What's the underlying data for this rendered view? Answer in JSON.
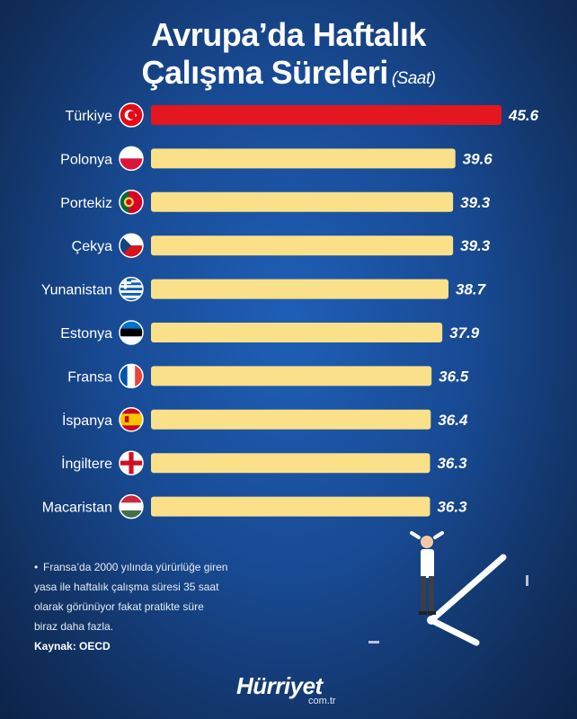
{
  "header": {
    "title_line1": "Avrupa’da Haftalık",
    "title_line2": "Çalışma Süreleri",
    "unit": "(Saat)"
  },
  "colors": {
    "highlight_bar": "#e4161f",
    "bar": "#fbe08a",
    "background": "#184a93"
  },
  "chart_data": {
    "type": "bar",
    "orientation": "horizontal",
    "title": "Avrupa’da Haftalık Çalışma Süreleri",
    "unit": "(Saat)",
    "categories": [
      "Türkiye",
      "Polonya",
      "Portekiz",
      "Çekya",
      "Yunanistan",
      "Estonya",
      "Fransa",
      "İspanya",
      "İngiltere",
      "Macaristan"
    ],
    "values": [
      45.6,
      39.6,
      39.3,
      39.3,
      38.7,
      37.9,
      36.5,
      36.4,
      36.3,
      36.3
    ],
    "value_labels": [
      "45.6",
      "39.6",
      "39.3",
      "39.3",
      "38.7",
      "37.9",
      "36.5",
      "36.4",
      "36.3",
      "36.3"
    ],
    "flags": [
      "turkey-flag-icon",
      "poland-flag-icon",
      "portugal-flag-icon",
      "czechia-flag-icon",
      "greece-flag-icon",
      "estonia-flag-icon",
      "france-flag-icon",
      "spain-flag-icon",
      "england-flag-icon",
      "hungary-flag-icon"
    ],
    "highlight_index": 0,
    "grid": false,
    "legend": "none"
  },
  "footnote": {
    "bullet": "•",
    "line1": "Fransa’da 2000 yılında yürürlüğe giren",
    "line2": "yasa ile haftalık çalışma süresi 35 saat",
    "line3": "olarak görünüyor fakat pratikte süre",
    "line4": "biraz daha fazla."
  },
  "source": "Kaynak: OECD",
  "brand": {
    "name": "Hürriyet",
    "domain": "com.tr"
  }
}
